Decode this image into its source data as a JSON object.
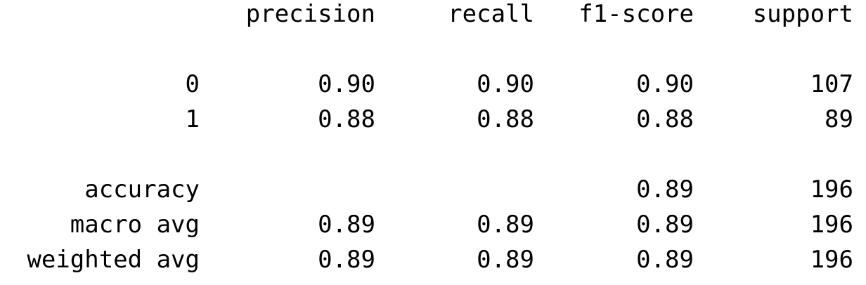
{
  "header": {
    "precision": "precision",
    "recall": "recall",
    "f1_score": "f1-score",
    "support": "support"
  },
  "rows": [
    {
      "label": "0",
      "precision": "0.90",
      "recall": "0.90",
      "f1_score": "0.90",
      "support": "107"
    },
    {
      "label": "1",
      "precision": "0.88",
      "recall": "0.88",
      "f1_score": "0.88",
      "support": "89"
    }
  ],
  "summary": {
    "accuracy": {
      "label": "accuracy",
      "precision": "",
      "recall": "",
      "f1_score": "0.89",
      "support": "196"
    },
    "macro_avg": {
      "label": "macro avg",
      "precision": "0.89",
      "recall": "0.89",
      "f1_score": "0.89",
      "support": "196"
    },
    "weighted_avg": {
      "label": "weighted avg",
      "precision": "0.89",
      "recall": "0.89",
      "f1_score": "0.89",
      "support": "196"
    }
  }
}
